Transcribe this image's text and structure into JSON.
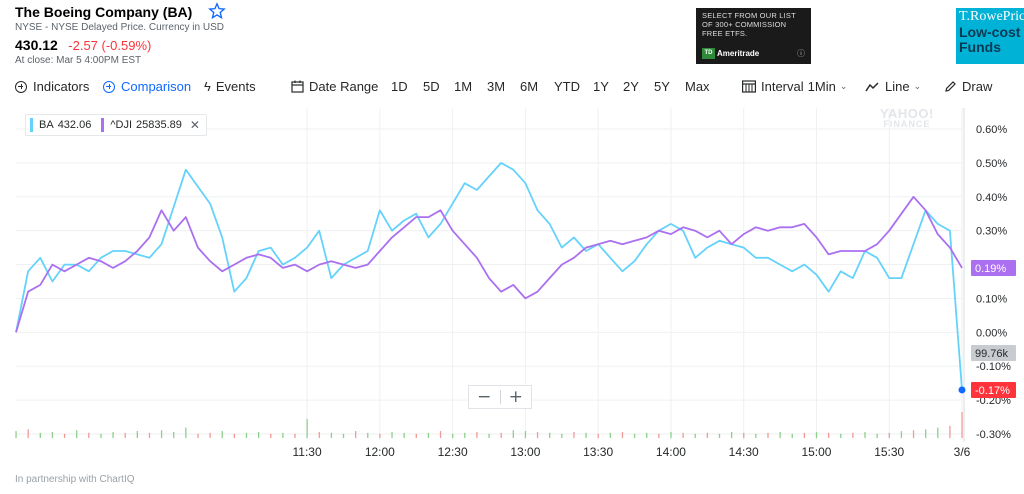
{
  "quote": {
    "title": "The Boeing Company (BA)",
    "exchange_note": "NYSE - NYSE Delayed Price. Currency in USD",
    "price": "430.12",
    "change": "-2.57 (-0.59%)",
    "close_time": "At close: Mar 5 4:00PM EST"
  },
  "ads": {
    "td": {
      "text": "SELECT FROM OUR LIST\nOF 300+ COMMISSION\nFREE ETFs.",
      "logo_box": "TD",
      "logo_text": "Ameritrade",
      "info_icon": "info-icon"
    },
    "trowe": {
      "brand": "T.RowePrice",
      "tagline": "Low-cost\nFunds"
    }
  },
  "toolbar": {
    "indicators": "Indicators",
    "comparison": "Comparison",
    "events": "Events",
    "date_range": "Date Range",
    "ranges": [
      "1D",
      "5D",
      "1M",
      "3M",
      "6M",
      "YTD",
      "1Y",
      "2Y",
      "5Y",
      "Max"
    ],
    "interval": "Interval",
    "interval_value": "1Min",
    "chart_type": "Line",
    "draw": "Draw",
    "icons": {
      "events": "lightning-icon",
      "date_range": "calendar-icon",
      "interval": "candlestick-icon",
      "chart_type": "line-chart-icon",
      "draw": "pencil-icon"
    }
  },
  "legend": {
    "ba": {
      "symbol": "BA",
      "value": "432.06"
    },
    "dji": {
      "symbol": "^DJI",
      "value": "25835.89"
    }
  },
  "watermark": {
    "line1": "YAHOO!",
    "line2": "FINANCE"
  },
  "zoom": {
    "minus": "−",
    "plus": "+"
  },
  "footer": "In partnership with ChartIQ",
  "colors": {
    "ba": "#65d2fb",
    "dji": "#ab70ef",
    "negative": "#ff333a",
    "accent": "#0f69ff",
    "volume_up": "#8ecf8e",
    "volume_down": "#f09a9a"
  },
  "chart_data": {
    "type": "line",
    "x_range": [
      "09:30",
      "16:00"
    ],
    "x_ticks": [
      "11:30",
      "12:00",
      "12:30",
      "13:00",
      "13:30",
      "14:00",
      "14:30",
      "15:00",
      "15:30",
      "3/6"
    ],
    "y_ticks": [
      "0.60%",
      "0.50%",
      "0.40%",
      "0.30%",
      "0.20%",
      "0.10%",
      "0.00%",
      "-0.10%",
      "-0.20%",
      "-0.30%"
    ],
    "ylim": [
      -0.3,
      0.6
    ],
    "y_unit": "%",
    "current_tags": {
      "dji": "0.19%",
      "volume": "99.76k",
      "ba": "-0.17%"
    },
    "series": [
      {
        "name": "BA",
        "x": [
          "09:30",
          "09:35",
          "09:40",
          "09:45",
          "09:50",
          "09:55",
          "10:00",
          "10:05",
          "10:10",
          "10:15",
          "10:20",
          "10:25",
          "10:30",
          "10:35",
          "10:40",
          "10:45",
          "10:50",
          "10:55",
          "11:00",
          "11:05",
          "11:10",
          "11:15",
          "11:20",
          "11:25",
          "11:30",
          "11:35",
          "11:40",
          "11:45",
          "11:50",
          "11:55",
          "12:00",
          "12:05",
          "12:10",
          "12:15",
          "12:20",
          "12:25",
          "12:30",
          "12:35",
          "12:40",
          "12:45",
          "12:50",
          "12:55",
          "13:00",
          "13:05",
          "13:10",
          "13:15",
          "13:20",
          "13:25",
          "13:30",
          "13:35",
          "13:40",
          "13:45",
          "13:50",
          "13:55",
          "14:00",
          "14:05",
          "14:10",
          "14:15",
          "14:20",
          "14:25",
          "14:30",
          "14:35",
          "14:40",
          "14:45",
          "14:50",
          "14:55",
          "15:00",
          "15:05",
          "15:10",
          "15:15",
          "15:20",
          "15:25",
          "15:30",
          "15:35",
          "15:40",
          "15:45",
          "15:50",
          "15:55",
          "16:00"
        ],
        "values": [
          0.0,
          0.18,
          0.22,
          0.15,
          0.2,
          0.2,
          0.18,
          0.22,
          0.24,
          0.24,
          0.23,
          0.22,
          0.26,
          0.37,
          0.48,
          0.43,
          0.38,
          0.28,
          0.12,
          0.16,
          0.24,
          0.25,
          0.2,
          0.22,
          0.25,
          0.3,
          0.16,
          0.2,
          0.22,
          0.24,
          0.36,
          0.3,
          0.33,
          0.35,
          0.28,
          0.32,
          0.38,
          0.44,
          0.42,
          0.46,
          0.5,
          0.48,
          0.44,
          0.36,
          0.32,
          0.25,
          0.28,
          0.24,
          0.26,
          0.22,
          0.18,
          0.21,
          0.26,
          0.3,
          0.32,
          0.3,
          0.22,
          0.25,
          0.27,
          0.26,
          0.25,
          0.22,
          0.22,
          0.2,
          0.18,
          0.2,
          0.17,
          0.12,
          0.18,
          0.16,
          0.24,
          0.22,
          0.16,
          0.16,
          0.26,
          0.36,
          0.32,
          0.3,
          -0.17
        ]
      },
      {
        "name": "^DJI",
        "x": [
          "09:30",
          "09:35",
          "09:40",
          "09:45",
          "09:50",
          "09:55",
          "10:00",
          "10:05",
          "10:10",
          "10:15",
          "10:20",
          "10:25",
          "10:30",
          "10:35",
          "10:40",
          "10:45",
          "10:50",
          "10:55",
          "11:00",
          "11:05",
          "11:10",
          "11:15",
          "11:20",
          "11:25",
          "11:30",
          "11:35",
          "11:40",
          "11:45",
          "11:50",
          "11:55",
          "12:00",
          "12:05",
          "12:10",
          "12:15",
          "12:20",
          "12:25",
          "12:30",
          "12:35",
          "12:40",
          "12:45",
          "12:50",
          "12:55",
          "13:00",
          "13:05",
          "13:10",
          "13:15",
          "13:20",
          "13:25",
          "13:30",
          "13:35",
          "13:40",
          "13:45",
          "13:50",
          "13:55",
          "14:00",
          "14:05",
          "14:10",
          "14:15",
          "14:20",
          "14:25",
          "14:30",
          "14:35",
          "14:40",
          "14:45",
          "14:50",
          "14:55",
          "15:00",
          "15:05",
          "15:10",
          "15:15",
          "15:20",
          "15:25",
          "15:30",
          "15:35",
          "15:40",
          "15:45",
          "15:50",
          "15:55",
          "16:00"
        ],
        "values": [
          0.0,
          0.12,
          0.14,
          0.2,
          0.18,
          0.2,
          0.22,
          0.21,
          0.19,
          0.21,
          0.24,
          0.28,
          0.36,
          0.3,
          0.34,
          0.25,
          0.21,
          0.18,
          0.2,
          0.22,
          0.23,
          0.22,
          0.19,
          0.2,
          0.18,
          0.2,
          0.21,
          0.2,
          0.19,
          0.2,
          0.24,
          0.28,
          0.31,
          0.34,
          0.34,
          0.36,
          0.3,
          0.26,
          0.22,
          0.16,
          0.12,
          0.14,
          0.1,
          0.12,
          0.16,
          0.2,
          0.22,
          0.25,
          0.26,
          0.27,
          0.26,
          0.27,
          0.28,
          0.3,
          0.29,
          0.31,
          0.3,
          0.28,
          0.3,
          0.26,
          0.29,
          0.31,
          0.3,
          0.31,
          0.31,
          0.32,
          0.28,
          0.23,
          0.24,
          0.24,
          0.24,
          0.26,
          0.3,
          0.35,
          0.4,
          0.36,
          0.29,
          0.25,
          0.19
        ]
      }
    ],
    "volume": {
      "x": [
        "09:30",
        "09:35",
        "09:40",
        "09:45",
        "09:50",
        "09:55",
        "10:00",
        "10:05",
        "10:10",
        "10:15",
        "10:20",
        "10:25",
        "10:30",
        "10:35",
        "10:40",
        "10:45",
        "10:50",
        "10:55",
        "11:00",
        "11:05",
        "11:10",
        "11:15",
        "11:20",
        "11:25",
        "11:30",
        "11:35",
        "11:40",
        "11:45",
        "11:50",
        "11:55",
        "12:00",
        "12:05",
        "12:10",
        "12:15",
        "12:20",
        "12:25",
        "12:30",
        "12:35",
        "12:40",
        "12:45",
        "12:50",
        "12:55",
        "13:00",
        "13:05",
        "13:10",
        "13:15",
        "13:20",
        "13:25",
        "13:30",
        "13:35",
        "13:40",
        "13:45",
        "13:50",
        "13:55",
        "14:00",
        "14:05",
        "14:10",
        "14:15",
        "14:20",
        "14:25",
        "14:30",
        "14:35",
        "14:40",
        "14:45",
        "14:50",
        "14:55",
        "15:00",
        "15:05",
        "15:10",
        "15:15",
        "15:20",
        "15:25",
        "15:30",
        "15:35",
        "15:40",
        "15:45",
        "15:50",
        "15:55",
        "16:00"
      ],
      "values": [
        8,
        10,
        6,
        7,
        5,
        9,
        6,
        5,
        7,
        6,
        8,
        6,
        9,
        7,
        12,
        5,
        6,
        8,
        5,
        6,
        7,
        5,
        6,
        5,
        22,
        7,
        6,
        5,
        8,
        6,
        5,
        7,
        6,
        5,
        6,
        8,
        5,
        6,
        7,
        5,
        6,
        9,
        8,
        7,
        6,
        5,
        7,
        6,
        5,
        6,
        7,
        5,
        6,
        5,
        7,
        6,
        5,
        6,
        5,
        7,
        6,
        5,
        6,
        7,
        5,
        6,
        7,
        6,
        5,
        6,
        7,
        5,
        6,
        8,
        9,
        10,
        12,
        14,
        30
      ],
      "up": [
        1,
        0,
        1,
        1,
        0,
        1,
        0,
        1,
        1,
        0,
        1,
        0,
        1,
        1,
        1,
        0,
        0,
        1,
        0,
        1,
        1,
        0,
        1,
        0,
        1,
        0,
        1,
        1,
        0,
        1,
        0,
        1,
        1,
        0,
        1,
        0,
        1,
        1,
        0,
        1,
        0,
        1,
        1,
        0,
        1,
        1,
        0,
        1,
        0,
        1,
        0,
        1,
        1,
        0,
        1,
        0,
        1,
        0,
        1,
        1,
        0,
        1,
        0,
        1,
        1,
        0,
        1,
        0,
        1,
        0,
        1,
        1,
        0,
        1,
        0,
        1,
        1,
        0,
        0
      ]
    }
  }
}
